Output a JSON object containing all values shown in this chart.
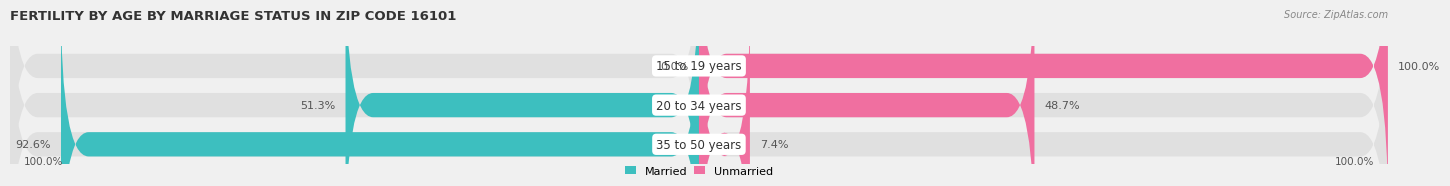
{
  "title": "FERTILITY BY AGE BY MARRIAGE STATUS IN ZIP CODE 16101",
  "source": "Source: ZipAtlas.com",
  "rows": [
    {
      "label": "15 to 19 years",
      "married": 0.0,
      "unmarried": 100.0
    },
    {
      "label": "20 to 34 years",
      "married": 51.3,
      "unmarried": 48.7
    },
    {
      "label": "35 to 50 years",
      "married": 92.6,
      "unmarried": 7.4
    }
  ],
  "married_color": "#3DBFBF",
  "unmarried_color": "#F06FA0",
  "bg_color": "#f0f0f0",
  "bar_bg_color": "#e0e0e0",
  "title_fontsize": 9.5,
  "label_fontsize": 8.5,
  "bar_height": 0.62,
  "x_left_label": "100.0%",
  "x_right_label": "100.0%",
  "legend_married": "Married",
  "legend_unmarried": "Unmarried"
}
